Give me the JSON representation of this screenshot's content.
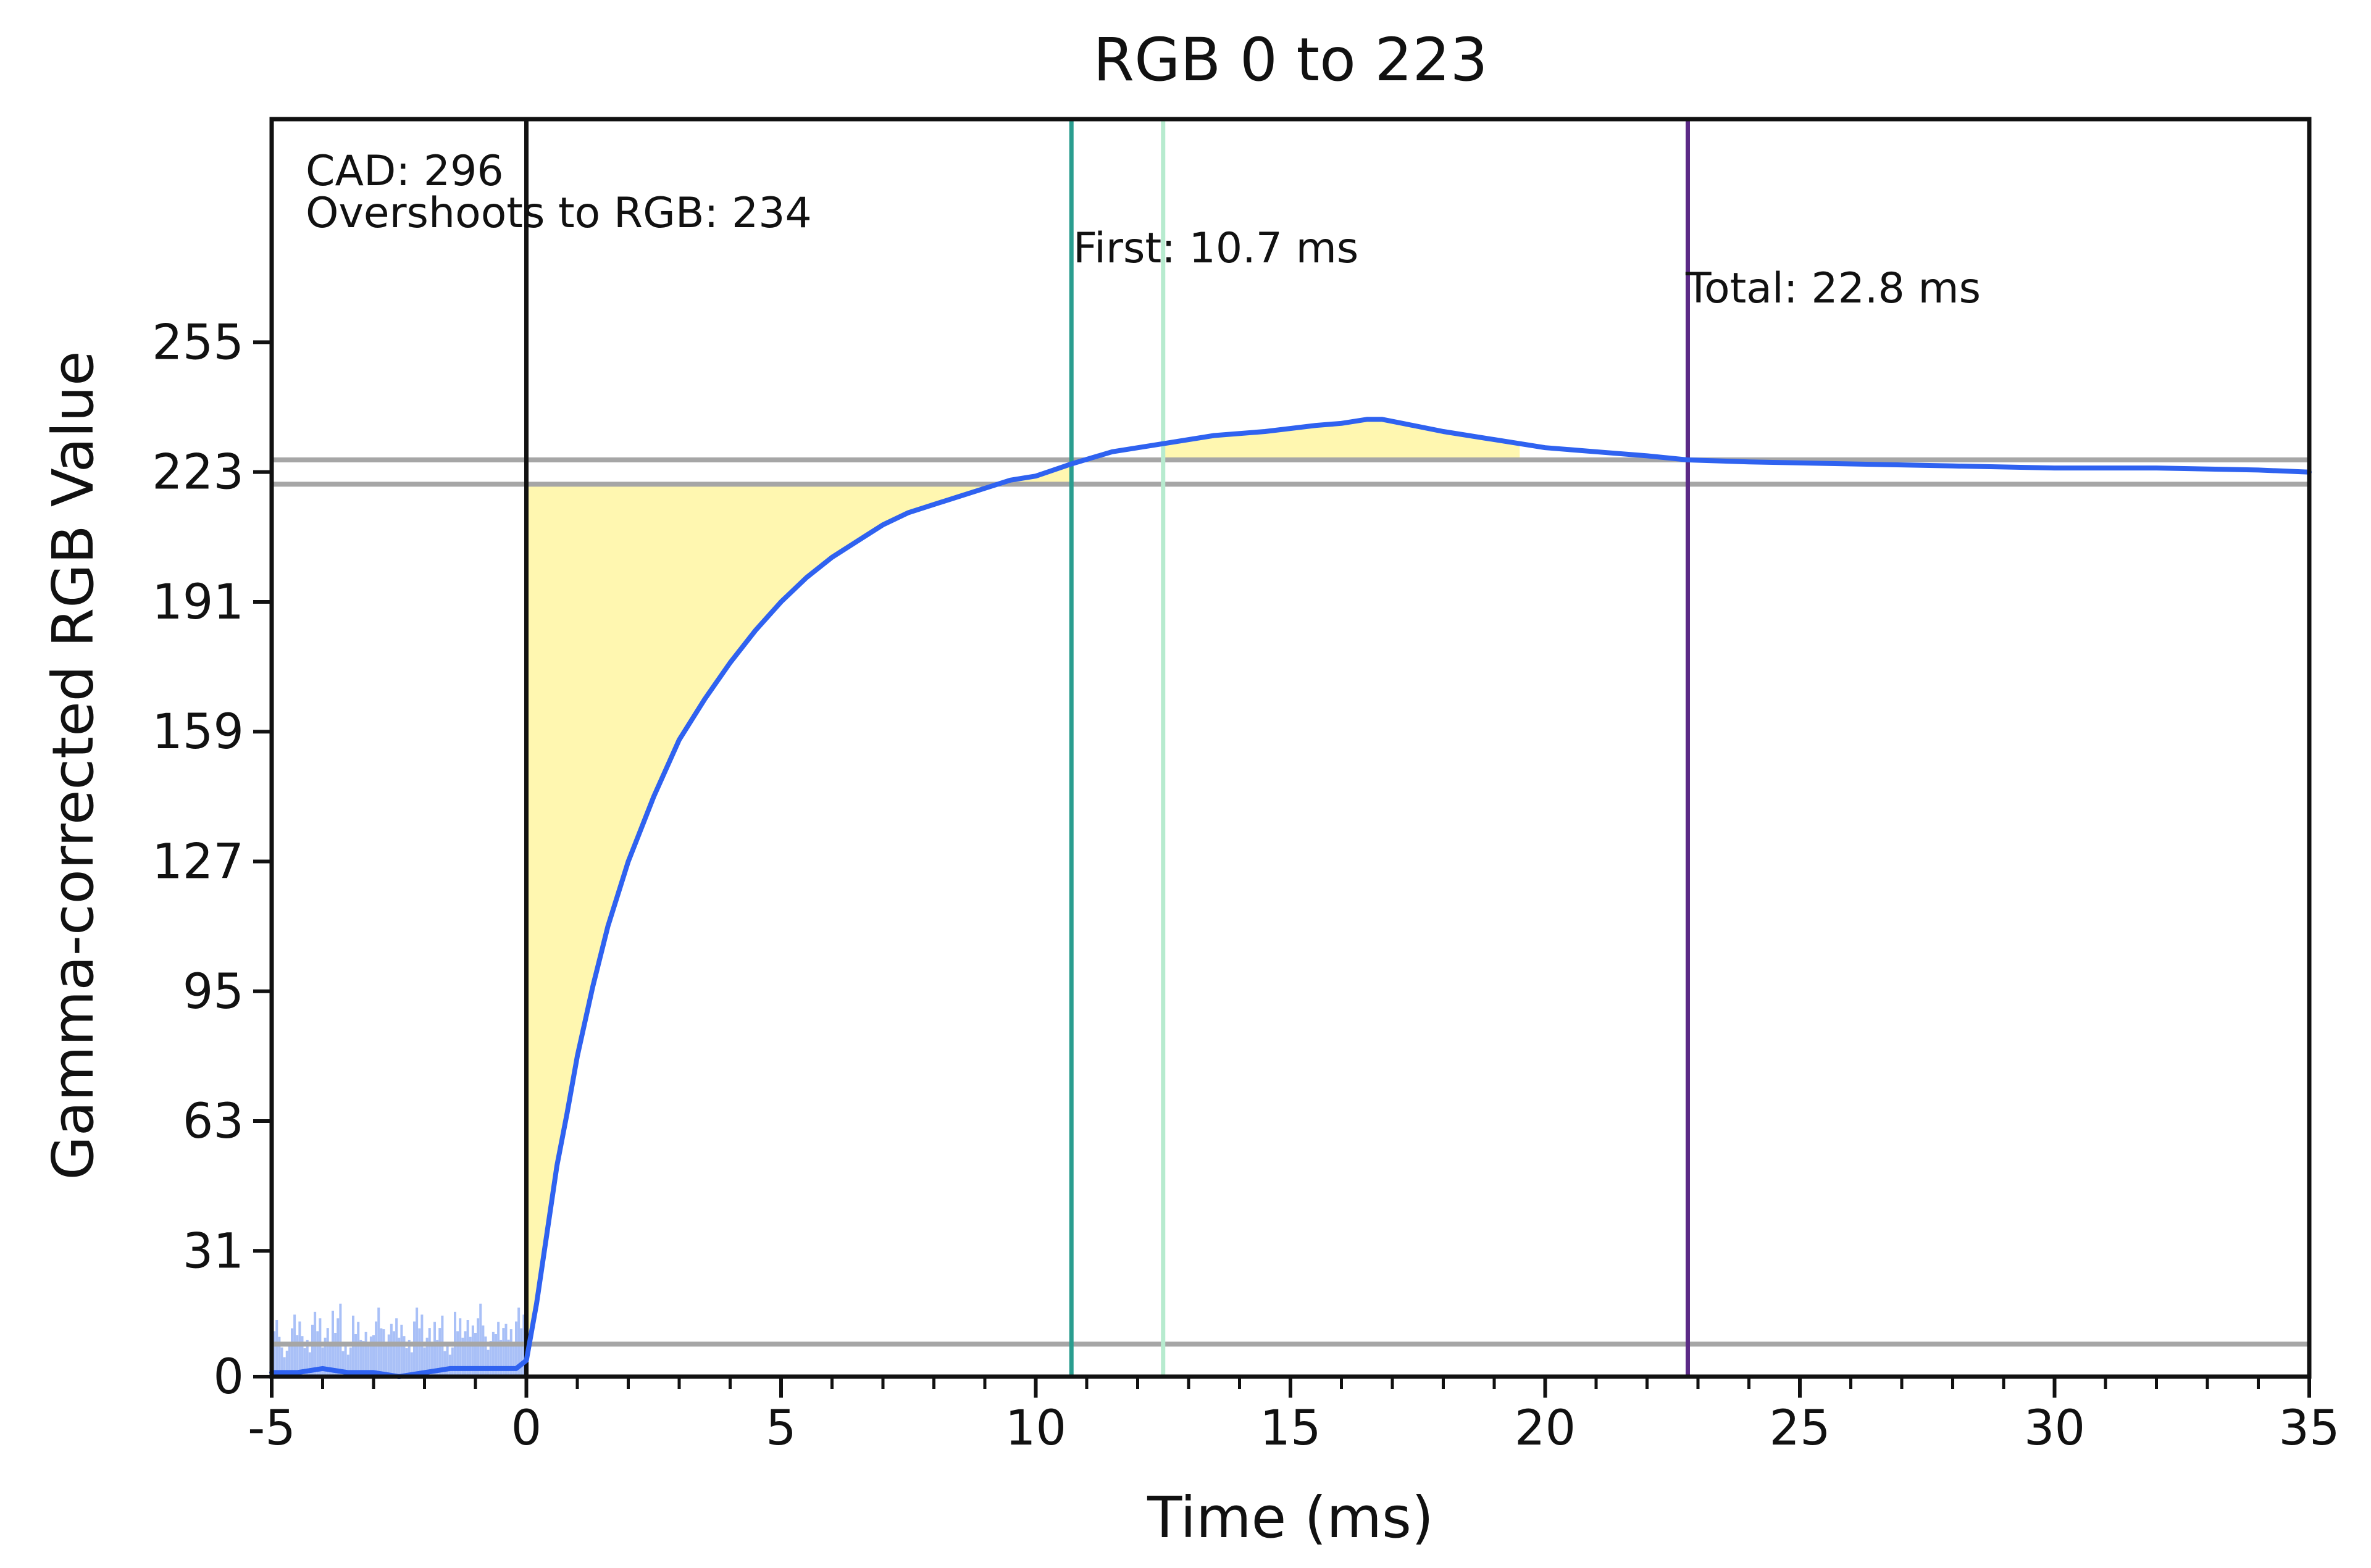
{
  "chart_data": {
    "type": "line",
    "title": "RGB 0 to 223",
    "xlabel": "Time (ms)",
    "ylabel": "Gamma-corrected RGB Value",
    "xlim": [
      -5,
      35
    ],
    "ylim": [
      0,
      310
    ],
    "x_ticks": [
      -5,
      0,
      5,
      10,
      15,
      20,
      25,
      30,
      35
    ],
    "x_minor_step": 1,
    "y_ticks": [
      0,
      31,
      63,
      95,
      127,
      159,
      191,
      223,
      255
    ],
    "grid": false,
    "annotations": {
      "cad": "CAD: 296",
      "overshoot": "Overshoots to RGB: 234",
      "first": "First: 10.7 ms",
      "total": "Total: 22.8 ms"
    },
    "reference_lines": {
      "horizontal": [
        {
          "y": 8,
          "color": "#a6a6a6"
        },
        {
          "y": 220,
          "color": "#a6a6a6"
        },
        {
          "y": 226,
          "color": "#a6a6a6"
        }
      ],
      "vertical": [
        {
          "x": 0,
          "color": "#111111"
        },
        {
          "x": 10.7,
          "color": "#2a9d8f"
        },
        {
          "x": 12.5,
          "color": "#b7ebcf"
        },
        {
          "x": 22.8,
          "color": "#5b2a86"
        }
      ]
    },
    "fill_color": "#fff7b0",
    "series": [
      {
        "color": "#2f62f0",
        "x": [
          -5,
          -4.5,
          -4,
          -3.5,
          -3,
          -2.5,
          -2,
          -1.5,
          -1,
          -0.5,
          -0.2,
          0,
          0.2,
          0.4,
          0.6,
          0.8,
          1.0,
          1.3,
          1.6,
          2.0,
          2.5,
          3.0,
          3.5,
          4.0,
          4.5,
          5.0,
          5.5,
          6.0,
          6.5,
          7.0,
          7.5,
          8.0,
          8.5,
          9.0,
          9.5,
          10.0,
          10.7,
          11.5,
          12.5,
          13.5,
          14.5,
          15.5,
          16.0,
          16.5,
          16.8,
          17.2,
          18.0,
          19.0,
          20.0,
          21.0,
          22.0,
          22.8,
          24.0,
          26.0,
          28.0,
          30.0,
          32.0,
          34.0,
          35.0
        ],
        "y": [
          1,
          1,
          2,
          1,
          1,
          0,
          1,
          2,
          2,
          2,
          2,
          4,
          18,
          35,
          52,
          65,
          79,
          96,
          111,
          127,
          143,
          157,
          167,
          176,
          184,
          191,
          197,
          202,
          206,
          210,
          213,
          215,
          217,
          219,
          221,
          222,
          225,
          228,
          230,
          232,
          233,
          234.5,
          235,
          236,
          236,
          235,
          233,
          231,
          229,
          228,
          227,
          226,
          225.5,
          225,
          224.5,
          224,
          224,
          223.5,
          223
        ]
      },
      {
        "color": "#a9c0f7",
        "x": [
          -5,
          -4.8,
          -4.6,
          -4.4,
          -4.2,
          -4.0,
          -3.8,
          -3.6,
          -3.4,
          -3.2,
          -3.0,
          -2.8,
          -2.6,
          -2.4,
          -2.2,
          -2.0,
          -1.8,
          -1.6,
          -1.4,
          -1.2,
          -1.0,
          -0.8,
          -0.6,
          -0.4,
          -0.2,
          0
        ],
        "y": [
          14,
          8,
          17,
          10,
          16,
          12,
          18,
          9,
          15,
          11,
          17,
          13,
          16,
          10,
          17,
          12,
          15,
          9,
          16,
          14,
          18,
          11,
          15,
          13,
          17,
          14
        ]
      }
    ]
  }
}
